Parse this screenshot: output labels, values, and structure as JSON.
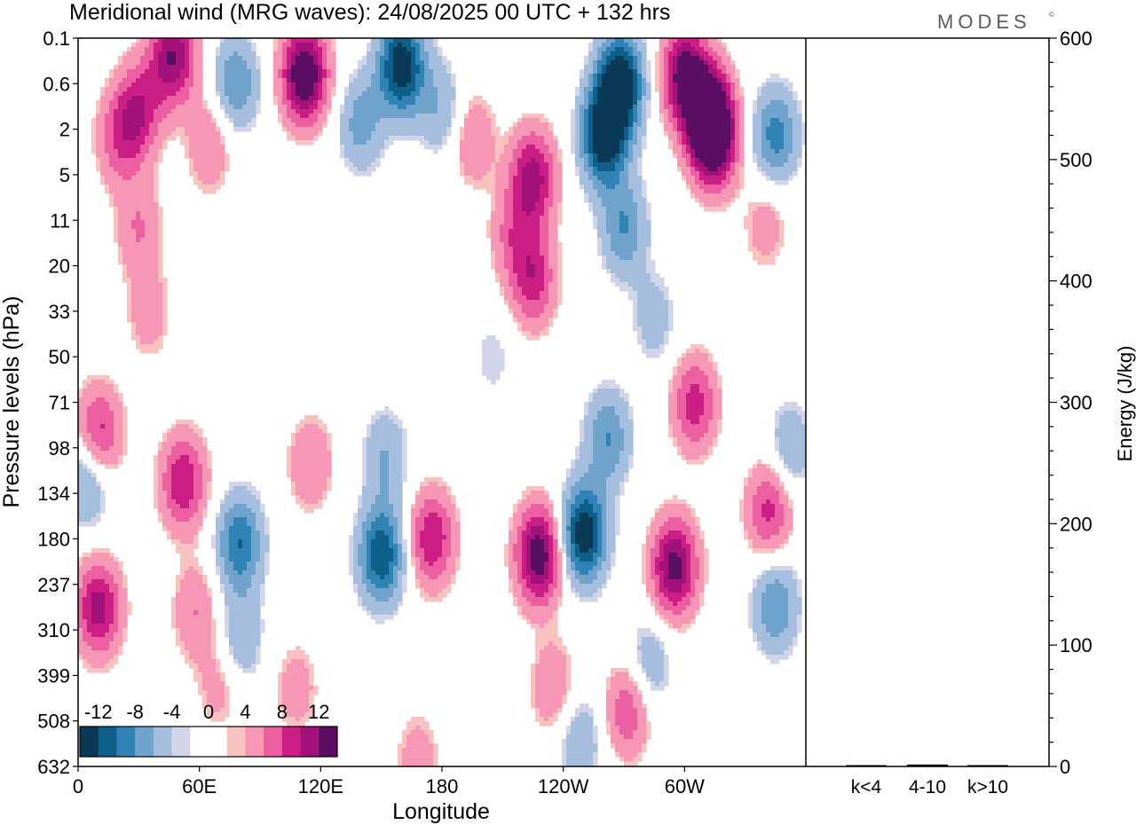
{
  "chart_data": {
    "type": "heatmap",
    "title": "Meridional wind (MRG waves):  24/08/2025  00 UTC  + 132 hrs",
    "brand": "MODES",
    "brand_mark": "©",
    "xlabel": "Longitude",
    "ylabel": "Pressure levels (hPa)",
    "x_ticks": [
      "0",
      "60E",
      "120E",
      "180",
      "120W",
      "60W"
    ],
    "x_tick_degrees": [
      0,
      60,
      120,
      180,
      240,
      300
    ],
    "x_range_degrees": [
      0,
      360
    ],
    "y_ticks": [
      "0.1",
      "0.6",
      "2",
      "5",
      "11",
      "20",
      "33",
      "50",
      "71",
      "98",
      "134",
      "180",
      "237",
      "310",
      "399",
      "508",
      "632"
    ],
    "colorbar": {
      "labels": [
        "-12",
        "-8",
        "-4",
        "0",
        "4",
        "8",
        "12"
      ],
      "colors": [
        "#0a3a55",
        "#0e5f8a",
        "#2f84b5",
        "#6fa3cb",
        "#a6bedd",
        "#d2d5e8",
        "#ffffff",
        "#ffffff",
        "#f7c2c0",
        "#f697b6",
        "#ec5fa0",
        "#cc1f86",
        "#a2127a",
        "#5a0f63"
      ]
    },
    "energy_panel": {
      "ylabel": "Energy (J/kg)",
      "ylim": [
        0,
        600
      ],
      "y_ticks": [
        0,
        100,
        200,
        300,
        400,
        500,
        600
      ],
      "categories": [
        "k<4",
        "4-10",
        "k>10"
      ],
      "values": [
        0.4,
        1.6,
        0.4
      ]
    },
    "anomalies": [
      {
        "lon": 47,
        "lev": 0.3,
        "v": 10
      },
      {
        "lon": 78,
        "lev": 0.6,
        "v": -6
      },
      {
        "lon": 112,
        "lev": 0.5,
        "v": 13
      },
      {
        "lon": 160,
        "lev": 0.4,
        "v": -12
      },
      {
        "lon": 268,
        "lev": 0.6,
        "v": -13
      },
      {
        "lon": 300,
        "lev": 0.5,
        "v": 11
      },
      {
        "lon": 312,
        "lev": 1.6,
        "v": 14
      },
      {
        "lon": 260,
        "lev": 2.5,
        "v": -12
      },
      {
        "lon": 30,
        "lev": 1.4,
        "v": 7
      },
      {
        "lon": 20,
        "lev": 2.6,
        "v": 5
      },
      {
        "lon": 65,
        "lev": 3.0,
        "v": 4
      },
      {
        "lon": 225,
        "lev": 5.3,
        "v": 9
      },
      {
        "lon": 195,
        "lev": 2.6,
        "v": 4
      },
      {
        "lon": 345,
        "lev": 2.4,
        "v": -7
      },
      {
        "lon": 140,
        "lev": 1.8,
        "v": -5
      },
      {
        "lon": 180,
        "lev": 1.4,
        "v": -4
      },
      {
        "lon": 315,
        "lev": 3.0,
        "v": 8
      },
      {
        "lon": 270,
        "lev": 12.5,
        "v": -6
      },
      {
        "lon": 340,
        "lev": 12.0,
        "v": 3
      },
      {
        "lon": 30,
        "lev": 12.5,
        "v": 4
      },
      {
        "lon": 225,
        "lev": 24.0,
        "v": 7
      },
      {
        "lon": 215,
        "lev": 14.0,
        "v": 4
      },
      {
        "lon": 285,
        "lev": 36.0,
        "v": -3
      },
      {
        "lon": 35,
        "lev": 34.0,
        "v": 3
      },
      {
        "lon": 205,
        "lev": 50.0,
        "v": -2
      },
      {
        "lon": 10,
        "lev": 91.0,
        "v": 8
      },
      {
        "lon": 52,
        "lev": 125.0,
        "v": 8
      },
      {
        "lon": 5,
        "lev": 121.0,
        "v": -6
      },
      {
        "lon": 10,
        "lev": 275.0,
        "v": 9
      },
      {
        "lon": 80,
        "lev": 185.0,
        "v": -8
      },
      {
        "lon": 80,
        "lev": 330.0,
        "v": -4
      },
      {
        "lon": 115,
        "lev": 110.0,
        "v": 4
      },
      {
        "lon": 150,
        "lev": 200.0,
        "v": -10
      },
      {
        "lon": 152,
        "lev": 105.0,
        "v": -4
      },
      {
        "lon": 175,
        "lev": 180.0,
        "v": 8
      },
      {
        "lon": 228,
        "lev": 200.0,
        "v": 12
      },
      {
        "lon": 250,
        "lev": 175.0,
        "v": -12
      },
      {
        "lon": 262,
        "lev": 92.0,
        "v": -6
      },
      {
        "lon": 295,
        "lev": 215.0,
        "v": 11
      },
      {
        "lon": 305,
        "lev": 72.0,
        "v": 7
      },
      {
        "lon": 342,
        "lev": 150.0,
        "v": 7
      },
      {
        "lon": 352,
        "lev": 100.0,
        "v": -4
      },
      {
        "lon": 345,
        "lev": 270.0,
        "v": -6
      },
      {
        "lon": 272,
        "lev": 480.0,
        "v": 6
      },
      {
        "lon": 235,
        "lev": 430.0,
        "v": 4
      },
      {
        "lon": 108,
        "lev": 430.0,
        "v": 3
      },
      {
        "lon": 70,
        "lev": 420.0,
        "v": 3
      },
      {
        "lon": 282,
        "lev": 380.0,
        "v": -4
      },
      {
        "lon": 168,
        "lev": 610.0,
        "v": 3
      },
      {
        "lon": 248,
        "lev": 560.0,
        "v": -4
      },
      {
        "lon": 58,
        "lev": 280.0,
        "v": 4
      }
    ]
  }
}
